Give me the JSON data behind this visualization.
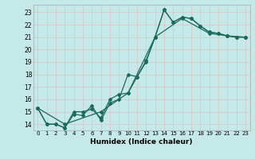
{
  "xlabel": "Humidex (Indice chaleur)",
  "ylabel": "",
  "xlim": [
    -0.5,
    23.5
  ],
  "ylim": [
    13.5,
    23.6
  ],
  "yticks": [
    14,
    15,
    16,
    17,
    18,
    19,
    20,
    21,
    22,
    23
  ],
  "xticks": [
    0,
    1,
    2,
    3,
    4,
    5,
    6,
    7,
    8,
    9,
    10,
    11,
    12,
    13,
    14,
    15,
    16,
    17,
    18,
    19,
    20,
    21,
    22,
    23
  ],
  "bg_color": "#c5e8e8",
  "line_color": "#1a6b5a",
  "grid_color": "#d8c8c8",
  "curves": [
    {
      "x": [
        0,
        1,
        2,
        3,
        4,
        5,
        6,
        7,
        8,
        9,
        10,
        11,
        12,
        13,
        14,
        15,
        16,
        17,
        18,
        19,
        20,
        21,
        22,
        23
      ],
      "y": [
        15.3,
        14.0,
        14.0,
        13.7,
        15.0,
        15.0,
        15.2,
        14.5,
        16.0,
        16.4,
        16.5,
        17.8,
        19.1,
        21.0,
        23.2,
        22.2,
        22.6,
        22.5,
        21.9,
        21.4,
        21.3,
        21.1,
        21.0,
        21.0
      ]
    },
    {
      "x": [
        0,
        1,
        2,
        3,
        4,
        5,
        6,
        7,
        8,
        9,
        10,
        11,
        12,
        13,
        14,
        15,
        16,
        17,
        18,
        19,
        20,
        21,
        22,
        23
      ],
      "y": [
        15.3,
        14.0,
        14.0,
        13.7,
        14.8,
        14.7,
        15.5,
        14.3,
        15.7,
        16.0,
        18.0,
        17.8,
        19.0,
        21.0,
        23.2,
        22.2,
        22.6,
        22.5,
        21.9,
        21.4,
        21.3,
        21.1,
        21.0,
        21.0
      ]
    },
    {
      "x": [
        0,
        3,
        7,
        10,
        13,
        16,
        19,
        21,
        23
      ],
      "y": [
        15.3,
        14.0,
        15.0,
        16.5,
        21.0,
        22.5,
        21.3,
        21.1,
        21.0
      ]
    }
  ]
}
